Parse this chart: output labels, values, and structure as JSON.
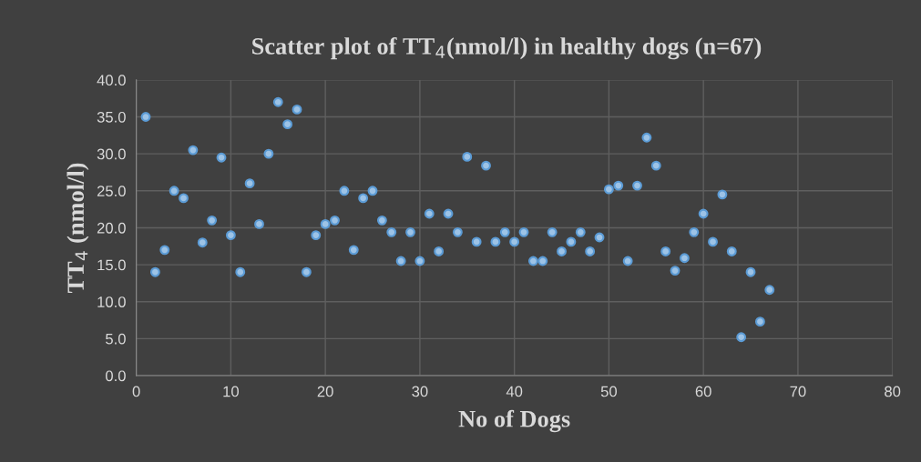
{
  "chart_data": {
    "type": "scatter",
    "title": "Scatter plot of TT$_{4}$(nmol/l) in healthy dogs (n=67)",
    "xlabel": "No of Dogs",
    "ylabel": "TT$_{4}$ (nmol/l)",
    "series": [
      {
        "color": "#9dc3e6",
        "x": [
          1,
          2,
          3,
          4,
          5,
          6,
          7,
          8,
          9,
          10,
          11,
          12,
          13,
          14,
          15,
          16,
          17,
          18,
          19,
          20,
          21,
          22,
          23,
          24,
          25,
          26,
          27,
          28,
          29,
          30,
          31,
          32,
          33,
          34,
          35,
          36,
          37,
          38,
          39,
          40,
          41,
          42,
          43,
          44,
          45,
          46,
          47,
          48,
          49,
          50,
          51,
          52,
          53,
          54,
          55,
          56,
          57,
          58,
          59,
          60,
          61,
          62,
          63,
          64,
          65,
          66,
          67
        ],
        "values": [
          35,
          14,
          17,
          25,
          24,
          30.5,
          18,
          21,
          29.5,
          19,
          14,
          26,
          20.5,
          30,
          37,
          34,
          36,
          14,
          19,
          20.5,
          21,
          25,
          17,
          24,
          25,
          21,
          19.4,
          15.5,
          19.4,
          15.5,
          21.9,
          16.8,
          21.9,
          19.4,
          29.6,
          18.1,
          28.4,
          18.1,
          19.4,
          18.1,
          19.4,
          15.5,
          15.5,
          19.4,
          16.8,
          18.1,
          19.4,
          16.8,
          18.7,
          25.2,
          25.7,
          15.5,
          25.7,
          32.2,
          28.4,
          16.8,
          14.2,
          15.9,
          19.4,
          21.9,
          18.1,
          24.5,
          16.8,
          5.2,
          14,
          7.3,
          11.6
        ]
      }
    ],
    "xlim": [
      0,
      80
    ],
    "xticks": [
      0,
      10,
      20,
      30,
      40,
      50,
      60,
      70,
      80
    ],
    "ylim": [
      0,
      40
    ],
    "yticks": [
      {
        "value": 0,
        "label": "0.0"
      },
      {
        "value": 5,
        "label": "5.0"
      },
      {
        "value": 10,
        "label": "10.0"
      },
      {
        "value": 15,
        "label": "15.0"
      },
      {
        "value": 20,
        "label": "20.0"
      },
      {
        "value": 25,
        "label": "25.0"
      },
      {
        "value": 30,
        "label": "30.0"
      },
      {
        "value": 35,
        "label": "35.0"
      },
      {
        "value": 40,
        "label": "40.0"
      }
    ],
    "grid": true,
    "marker": "circle"
  }
}
